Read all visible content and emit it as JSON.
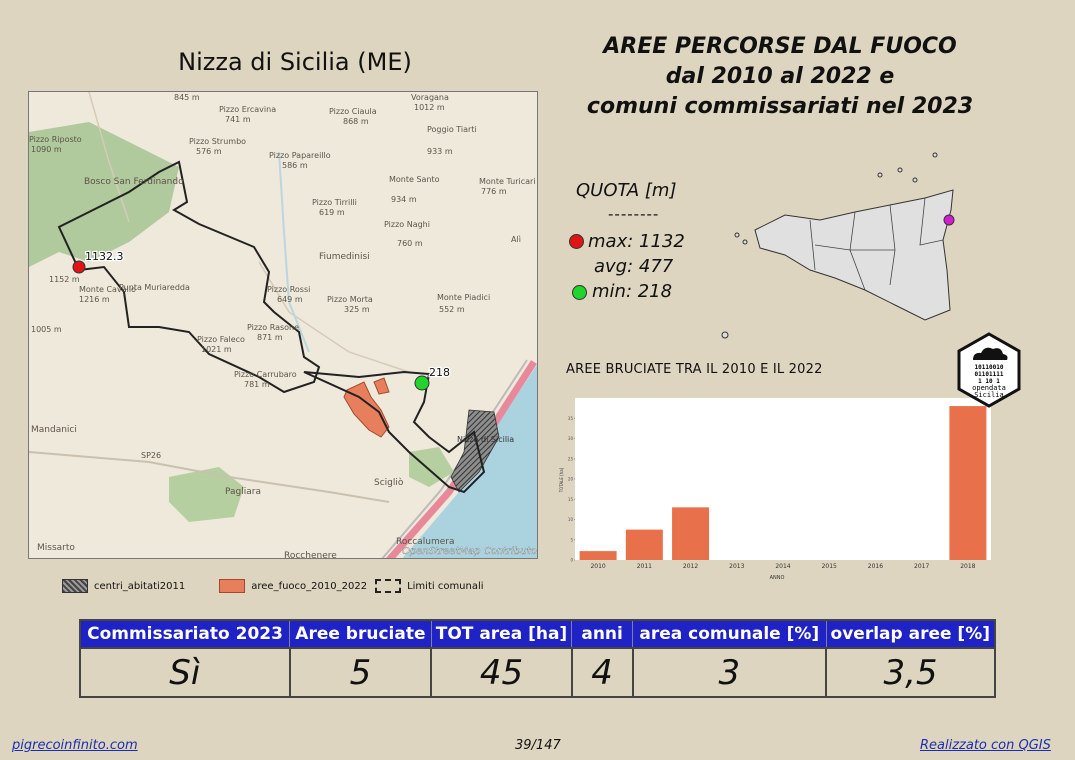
{
  "place": {
    "title": "Nizza di Sicilia (ME)"
  },
  "main_title": {
    "line1": "AREE PERCORSE DAL FUOCO",
    "line2": "dal 2010 al 2022 e",
    "line3": "comuni commissariati nel 2023"
  },
  "quota": {
    "title": "QUOTA [m]",
    "dashes": "--------",
    "max": "max: 1132",
    "avg": "avg: 477",
    "min": "min: 218"
  },
  "map": {
    "max_label": "1132.3",
    "min_label": "218",
    "attribution": "OpenStreetMap Contributor",
    "labels": [
      "845 m",
      "Pizzo Ercavina",
      "741 m",
      "Pizzo Ciaula",
      "868 m",
      "Voragana",
      "1012 m",
      "Poggio Tiarti",
      "933 m",
      "Pizzo Strumbo",
      "576 m",
      "Pizzo Papareillo",
      "586 m",
      "Monte Santo",
      "934 m",
      "Monte Turicari",
      "776 m",
      "Pizzo Tirrilli",
      "619 m",
      "Pizzo Naghi",
      "760 m",
      "Bosco San Ferdinando",
      "Pizzo Riposto",
      "1090 m",
      "Fiumedinisi",
      "Alì",
      "Pizzo Rossi",
      "649 m",
      "Pizzo Morta",
      "325 m",
      "Monte Piadici",
      "552 m",
      "Pizzo Faleco",
      "1021 m",
      "Pizzo Rasone",
      "871 m",
      "Monte Cavallo",
      "1216 m",
      "Punta Muriaredda",
      "1152 m",
      "Pizzo Carrubaro",
      "781 m",
      "Mandanici",
      "SP26",
      "Pagliara",
      "Scigliò",
      "Nizza di Sicilia",
      "Roccalumera",
      "Missarto",
      "Rocchenere",
      "1005 m"
    ]
  },
  "chart": {
    "title": "AREE BRUCIATE TRA IL 2010 E IL 2022",
    "xlabel": "ANNO",
    "ylabel": "TOTALE [ha]"
  },
  "chart_data": {
    "type": "bar",
    "title": "AREE BRUCIATE TRA IL 2010 E IL 2022",
    "xlabel": "ANNO",
    "ylabel": "TOTALE [ha]",
    "categories": [
      "2010",
      "2011",
      "2012",
      "2013",
      "2014",
      "2015",
      "2016",
      "2017",
      "2018"
    ],
    "values": [
      2.2,
      7.5,
      13,
      0,
      0,
      0,
      0,
      0,
      38
    ],
    "yticks": [
      0,
      5,
      10,
      15,
      20,
      25,
      30,
      35
    ],
    "ylim": [
      0,
      40
    ],
    "color": "#e8704a",
    "grid": false,
    "legend": "none"
  },
  "logo": {
    "line1": "10110010",
    "line2": "01101111",
    "line3": "1  10 1",
    "brand1": "opendata",
    "brand2": "Sicilia"
  },
  "legend": {
    "centri": "centri_abitati2011",
    "fuoco": "aree_fuoco_2010_2022",
    "limiti": "Limiti comunali"
  },
  "stats": {
    "headers": [
      "Commissariato 2023",
      "Aree bruciate",
      "TOT area [ha]",
      "anni",
      "area comunale [%]",
      "overlap aree [%]"
    ],
    "values": [
      "Sì",
      "5",
      "45",
      "4",
      "3",
      "3,5"
    ]
  },
  "footer": {
    "site": "pigrecoinfinito.com",
    "page": "39/147",
    "made_with": "Realizzato con QGIS"
  },
  "colors": {
    "header_bg": "#1f22c4",
    "page_bg": "#ddd5bf",
    "fire": "#e87f5c",
    "max_dot": "#e01414",
    "min_dot": "#22d42e",
    "sea": "#aad3df",
    "marker": "#d51ad6"
  }
}
